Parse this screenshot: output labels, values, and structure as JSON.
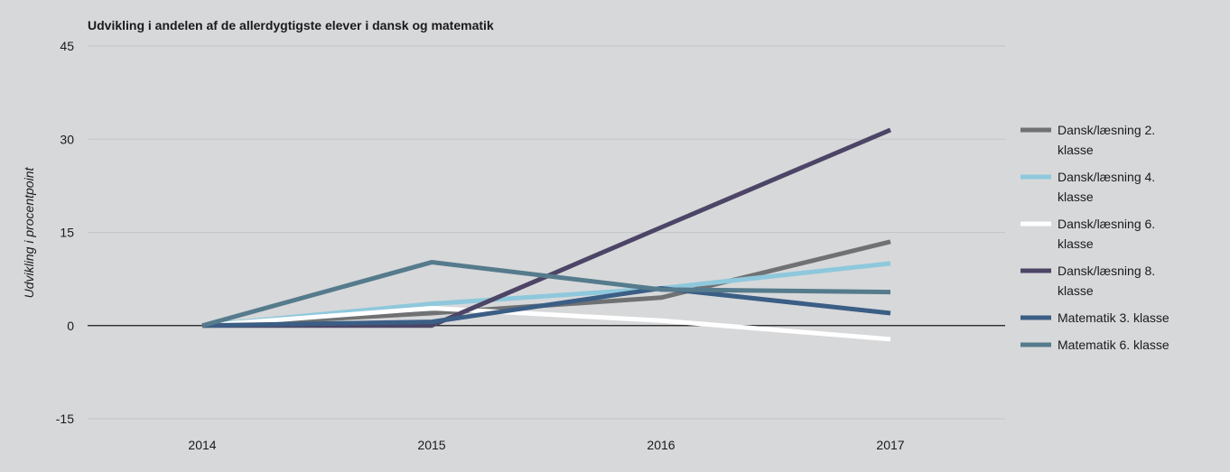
{
  "chart_data": {
    "type": "line",
    "title": "Udvikling i andelen af de allerdygtigste elever i dansk og matematik",
    "xlabel": "",
    "ylabel": "Udvikling i procentpoint",
    "categories": [
      "2014",
      "2015",
      "2016",
      "2017"
    ],
    "ylim": [
      -15,
      45
    ],
    "yticks": [
      -15,
      0,
      15,
      30,
      45
    ],
    "grid": true,
    "legend_position": "right",
    "series": [
      {
        "name": "Dansk/læsning 2. klasse",
        "name_lines": [
          "Dansk/læsning 2.",
          "klasse"
        ],
        "color": "#6f7173",
        "values": [
          0,
          2.0,
          4.5,
          13.5
        ]
      },
      {
        "name": "Dansk/læsning 4. klasse",
        "name_lines": [
          "Dansk/læsning 4.",
          "klasse"
        ],
        "color": "#8ec8dc",
        "values": [
          0,
          3.5,
          6.0,
          10.0
        ]
      },
      {
        "name": "Dansk/læsning 6. klasse",
        "name_lines": [
          "Dansk/læsning 6.",
          "klasse"
        ],
        "color": "#ffffff",
        "values": [
          0,
          2.8,
          0.8,
          -2.2
        ]
      },
      {
        "name": "Dansk/læsning 8. klasse",
        "name_lines": [
          "Dansk/læsning 8.",
          "klasse"
        ],
        "color": "#4d4566",
        "values": [
          0,
          0,
          15.8,
          31.5
        ]
      },
      {
        "name": "Matematik 3. klasse",
        "name_lines": [
          "Matematik 3. klasse"
        ],
        "color": "#3b5e85",
        "values": [
          0,
          0.6,
          6.0,
          2.0
        ]
      },
      {
        "name": "Matematik 6. klasse",
        "name_lines": [
          "Matematik 6. klasse"
        ],
        "color": "#557b8c",
        "values": [
          0,
          10.2,
          5.8,
          5.4
        ]
      }
    ]
  }
}
